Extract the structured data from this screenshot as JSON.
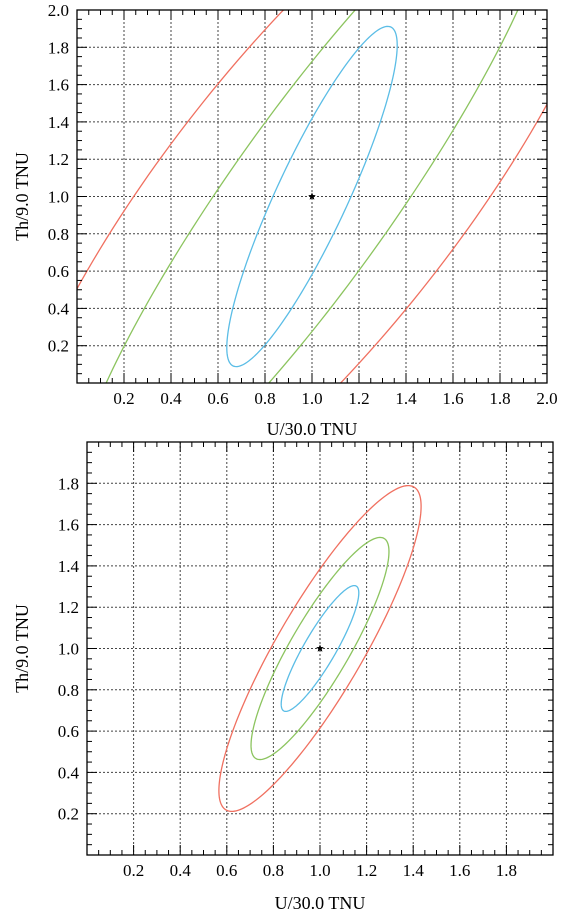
{
  "chart_data": [
    {
      "type": "line",
      "subtype": "contour",
      "xlabel": "U/30.0 TNU",
      "ylabel": "Th/9.0 TNU",
      "xlim": [
        0.0,
        2.0
      ],
      "ylim": [
        0.0,
        2.0
      ],
      "xticks": [
        0.2,
        0.4,
        0.6,
        0.8,
        1.0,
        1.2,
        1.4,
        1.6,
        1.8,
        2.0
      ],
      "yticks": [
        0.2,
        0.4,
        0.6,
        0.8,
        1.0,
        1.2,
        1.4,
        1.6,
        1.8,
        2.0
      ],
      "xtick_labels": [
        "0.2",
        "0.4",
        "0.6",
        "0.8",
        "1.0",
        "1.2",
        "1.4",
        "1.6",
        "1.8",
        "2.0"
      ],
      "ytick_labels": [
        "0.2",
        "0.4",
        "0.6",
        "0.8",
        "1.0",
        "1.2",
        "1.4",
        "1.6",
        "1.8",
        "2.0"
      ],
      "grid": true,
      "best_fit": {
        "x": 1.0,
        "y": 1.0
      },
      "contours": [
        {
          "color": "#5bbde6",
          "center": [
            1.0,
            1.0
          ],
          "rx": 0.1565,
          "ry": 0.969,
          "angle_deg": -20,
          "clip": true
        },
        {
          "color": "#8cc45f",
          "center": [
            1.0,
            1.0
          ],
          "rx": 0.37,
          "ry": 2.0,
          "angle_deg": -29,
          "clip": true
        },
        {
          "color": "#f07060",
          "center": [
            1.0,
            1.0
          ],
          "rx": 0.66,
          "ry": 2.3,
          "angle_deg": -31,
          "clip": true
        }
      ]
    },
    {
      "type": "line",
      "subtype": "contour",
      "xlabel": "U/30.0 TNU",
      "ylabel": "Th/9.0 TNU",
      "xlim": [
        0.0,
        2.0
      ],
      "ylim": [
        0.0,
        2.0
      ],
      "xticks": [
        0.2,
        0.4,
        0.6,
        0.8,
        1.0,
        1.2,
        1.4,
        1.6,
        1.8
      ],
      "yticks": [
        0.2,
        0.4,
        0.6,
        0.8,
        1.0,
        1.2,
        1.4,
        1.6,
        1.8
      ],
      "xtick_labels": [
        "0.2",
        "0.4",
        "0.6",
        "0.8",
        "1.0",
        "1.2",
        "1.4",
        "1.6",
        "1.8"
      ],
      "ytick_labels": [
        "0.2",
        "0.4",
        "0.6",
        "0.8",
        "1.0",
        "1.2",
        "1.4",
        "1.6",
        "1.8"
      ],
      "grid": true,
      "best_fit": {
        "x": 1.0,
        "y": 1.0
      },
      "contours": [
        {
          "color": "#5bbde6",
          "center": [
            1.0,
            1.0
          ],
          "rx": 0.07,
          "ry": 0.34,
          "angle_deg": -27,
          "clip": true
        },
        {
          "color": "#8cc45f",
          "center": [
            1.0,
            1.0
          ],
          "rx": 0.13,
          "ry": 0.6,
          "angle_deg": -27,
          "clip": true
        },
        {
          "color": "#f07060",
          "center": [
            1.0,
            1.0
          ],
          "rx": 0.19,
          "ry": 0.88,
          "angle_deg": -27,
          "clip": true
        }
      ]
    }
  ]
}
